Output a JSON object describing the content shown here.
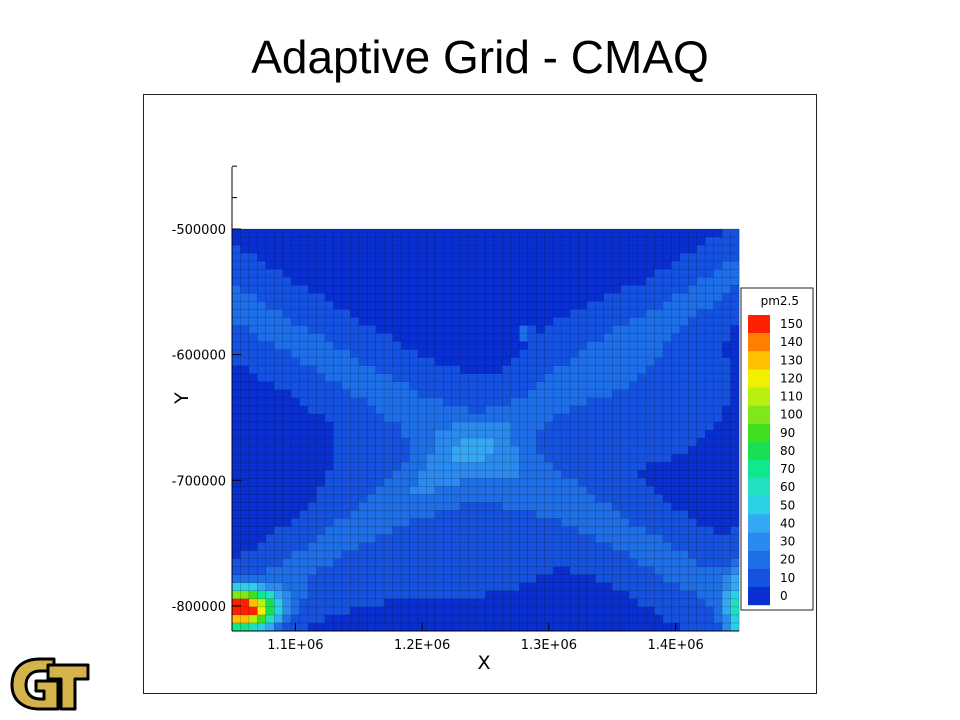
{
  "slide": {
    "title": "Adaptive Grid - CMAQ"
  },
  "chart_data": {
    "type": "heatmap",
    "title": "",
    "xlabel": "X",
    "ylabel": "Y",
    "xlim": [
      1050000,
      1450000
    ],
    "ylim": [
      -820000,
      -500000
    ],
    "x_ticks": [
      1100000,
      1200000,
      1300000,
      1400000
    ],
    "x_tick_labels": [
      "1.1E+06",
      "1.2E+06",
      "1.3E+06",
      "1.4E+06"
    ],
    "y_ticks": [
      -500000,
      -600000,
      -700000,
      -800000
    ],
    "y_tick_labels": [
      "-500000",
      "-600000",
      "-700000",
      "-800000"
    ],
    "grid": true,
    "grid_size": [
      60,
      50
    ],
    "legend": {
      "title": "pm2.5",
      "placement": "right",
      "levels": [
        0,
        10,
        20,
        30,
        40,
        50,
        60,
        70,
        80,
        90,
        100,
        110,
        120,
        130,
        140,
        150
      ],
      "level_labels": [
        "0",
        "10",
        "20",
        "30",
        "40",
        "50",
        "60",
        "70",
        "80",
        "90",
        "100",
        "110",
        "120",
        "130",
        "140",
        "150"
      ],
      "colors": [
        "#0a2fd0",
        "#1652e0",
        "#1e6ee8",
        "#2a8af0",
        "#35a8f5",
        "#2ccfe8",
        "#20e0c0",
        "#10e890",
        "#18e050",
        "#40e020",
        "#80e818",
        "#b8f010",
        "#f0f000",
        "#ffc000",
        "#ff8000",
        "#ff2000"
      ]
    },
    "field_description_values": {
      "background_pm25": 15,
      "x_band_pm25": 25,
      "southwest_hotspot_max_pm25": 145,
      "east_edge_max_pm25": 60
    }
  },
  "logo": {
    "text": "GT",
    "fill": "#d4b24c",
    "outline": "#000000"
  }
}
